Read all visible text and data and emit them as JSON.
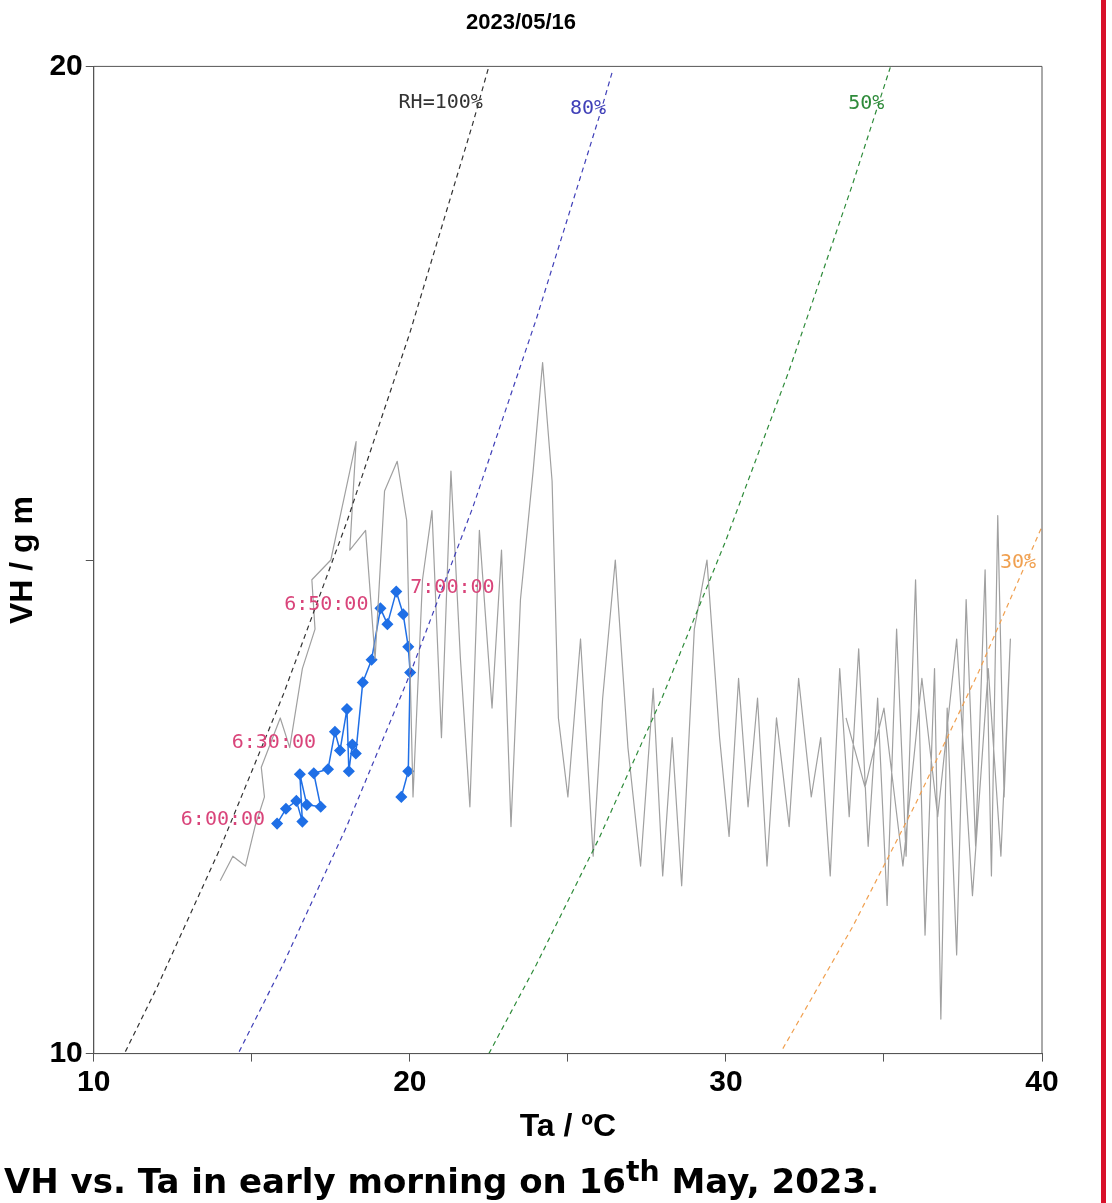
{
  "chart_data": {
    "type": "line",
    "title": "2023/05/16",
    "xlabel": "Ta / ºC",
    "ylabel": "VH / g m",
    "xlim": [
      10,
      40
    ],
    "ylim": [
      10,
      20
    ],
    "xticks": [
      10,
      {
        "value": 15,
        "label": null
      },
      20,
      {
        "value": 25,
        "label": null
      },
      30,
      {
        "value": 35,
        "label": null
      },
      40
    ],
    "yticks": [
      10,
      {
        "value": 15,
        "label": null
      },
      20
    ],
    "grid": false,
    "legend": false,
    "series": [
      {
        "name": "RH=100%",
        "color": "#333333",
        "line_style": "dashed",
        "marker": "none",
        "x": [
          11,
          12,
          14,
          16,
          18,
          20,
          22,
          22.5
        ],
        "values": [
          10.02,
          10.67,
          12.08,
          13.64,
          15.38,
          17.3,
          19.43,
          20.0
        ]
      },
      {
        "name": "80%",
        "color": "#4040b8",
        "line_style": "dashed",
        "marker": "none",
        "x": [
          14.6,
          16,
          18,
          20,
          22,
          24,
          26,
          26.4
        ],
        "values": [
          10.02,
          10.91,
          12.3,
          13.84,
          15.54,
          17.44,
          19.5,
          19.94
        ]
      },
      {
        "name": "50%",
        "color": "#2e8b3a",
        "line_style": "dashed",
        "marker": "none",
        "x": [
          22.5,
          24,
          26,
          28,
          30,
          32,
          34,
          35.2
        ],
        "values": [
          10.0,
          10.9,
          12.19,
          13.62,
          15.2,
          16.92,
          18.8,
          19.99
        ]
      },
      {
        "name": "30%",
        "color": "#f0a050",
        "line_style": "dashed",
        "marker": "none",
        "x": [
          31.8,
          34,
          36,
          38,
          40
        ],
        "values": [
          10.05,
          11.28,
          12.53,
          13.87,
          15.34
        ]
      },
      {
        "color": "#a0a0a0",
        "line_style": "solid",
        "marker": "none",
        "x": [
          14.0,
          14.4,
          14.8,
          15.1,
          15.4,
          15.3,
          15.9,
          16.2,
          16.6,
          17.0,
          16.9,
          17.5,
          17.9,
          18.3,
          18.1,
          18.6,
          18.9,
          19.2,
          19.6,
          19.9,
          20.1,
          20.4,
          20.7,
          21.0,
          21.3,
          21.6,
          21.9,
          22.2,
          22.6,
          22.9,
          23.2,
          23.5,
          23.9,
          24.2,
          24.5,
          24.7,
          25.0,
          25.4,
          25.8,
          26.1,
          26.5,
          26.9,
          27.3,
          27.7,
          28.0,
          28.3,
          28.6,
          29.0,
          29.4,
          29.8,
          30.1,
          30.4,
          30.7,
          31.0,
          31.3,
          31.6,
          32.0,
          32.3,
          32.7,
          33.0,
          33.3,
          33.6,
          33.9,
          34.2,
          34.5,
          34.8,
          35.1,
          35.4,
          35.7,
          36.0,
          36.3,
          36.6,
          36.8,
          37.0,
          37.3,
          37.6,
          37.9,
          38.2,
          38.4,
          38.6,
          38.8,
          39.0,
          38.7,
          38.3,
          37.8,
          37.3,
          36.7,
          36.2,
          35.6,
          35.0,
          34.4,
          33.8
        ],
        "values": [
          11.75,
          12.0,
          11.9,
          12.3,
          12.6,
          12.9,
          13.4,
          13.1,
          13.9,
          14.3,
          14.8,
          15.0,
          15.6,
          16.2,
          15.1,
          15.3,
          14.0,
          15.7,
          16.0,
          15.4,
          12.6,
          14.8,
          15.5,
          13.2,
          15.9,
          14.0,
          12.5,
          15.3,
          13.5,
          15.1,
          12.3,
          14.6,
          15.9,
          17.0,
          15.8,
          13.4,
          12.6,
          14.2,
          12.0,
          13.6,
          15.0,
          13.1,
          11.9,
          13.7,
          11.8,
          13.2,
          11.7,
          14.3,
          15.0,
          13.2,
          12.2,
          13.8,
          12.5,
          13.6,
          11.9,
          13.4,
          12.3,
          13.8,
          12.6,
          13.2,
          11.8,
          13.9,
          12.4,
          14.1,
          12.1,
          13.6,
          11.5,
          14.3,
          12.0,
          14.8,
          11.2,
          13.9,
          10.35,
          13.5,
          11.0,
          14.6,
          12.1,
          14.9,
          11.8,
          15.45,
          12.6,
          14.2,
          12.0,
          13.9,
          11.6,
          14.2,
          12.4,
          13.8,
          11.9,
          13.5,
          12.7,
          13.4
        ]
      },
      {
        "color": "#1f6fe6",
        "line_style": "solid",
        "marker": "diamond",
        "x": [
          15.8,
          16.08,
          16.41,
          16.6,
          16.52,
          16.74,
          17.18,
          16.96,
          17.41,
          17.63,
          17.79,
          18.01,
          18.07,
          18.18,
          18.29,
          18.51,
          18.79,
          19.07,
          19.29,
          19.57,
          19.79,
          19.95,
          20.01,
          19.95,
          19.73
        ],
        "values": [
          12.33,
          12.48,
          12.56,
          12.35,
          12.83,
          12.52,
          12.5,
          12.84,
          12.88,
          13.26,
          13.07,
          13.49,
          12.86,
          13.13,
          13.04,
          13.76,
          13.99,
          14.51,
          14.35,
          14.68,
          14.45,
          14.12,
          13.86,
          12.86,
          12.6
        ]
      }
    ],
    "annotations": [
      {
        "text": "6:00:00",
        "x": 15.8,
        "y": 12.33
      },
      {
        "text": "6:30:00",
        "x": 17.41,
        "y": 12.88
      },
      {
        "text": "6:50:00",
        "x": 19.07,
        "y": 14.51
      },
      {
        "text": "7:00:00",
        "x": 19.57,
        "y": 14.68
      },
      "VH vs. Ta in early morning on 16$^{th}$ May, 2023."
    ]
  }
}
